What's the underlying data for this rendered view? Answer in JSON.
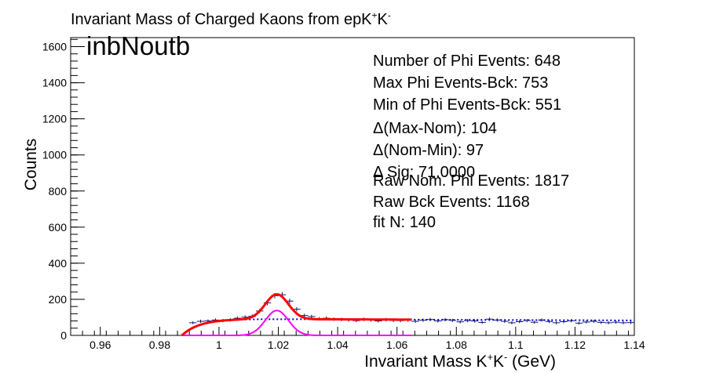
{
  "title": {
    "prefix": "Invariant Mass of Charged Kaons from epK",
    "sup1": "+",
    "mid": "K",
    "sup2": "-"
  },
  "run_label": "inbNoutb",
  "stats": [
    "Number of Phi Events: 648",
    "Max Phi Events-Bck: 753",
    "Min of Phi Events-Bck: 551",
    "Δ(Max-Nom): 104",
    "Δ(Nom-Min): 97",
    "Δ Sig: 71.0000",
    "Raw Nom. Phi Events: 1817",
    "Raw Bck Events: 1168",
    "fit N: 140"
  ],
  "chart_data": {
    "type": "scatter",
    "title": "Invariant Mass of Charged Kaons from epK+K-",
    "xlabel": "Invariant Mass K+K- (GeV)",
    "ylabel": "Counts",
    "xlim": [
      0.95,
      1.14
    ],
    "ylim": [
      0,
      1650
    ],
    "x_ticks": [
      0.96,
      0.98,
      1,
      1.02,
      1.04,
      1.06,
      1.08,
      1.1,
      1.12,
      1.14
    ],
    "x_tick_labels": [
      "0.96",
      "0.98",
      "1",
      "1.02",
      "1.04",
      "1.06",
      "1.08",
      "1.1",
      "1.12",
      "1.14"
    ],
    "y_ticks": [
      0,
      200,
      400,
      600,
      800,
      1000,
      1200,
      1400,
      1600
    ],
    "y_tick_labels": [
      "0",
      "200",
      "400",
      "600",
      "800",
      "1000",
      "1200",
      "1400",
      "1600"
    ],
    "grid": false,
    "series": [
      {
        "type": "points",
        "color": "#0b1670",
        "bin_width": 0.0025,
        "x": [
          0.9912,
          0.9938,
          0.9963,
          0.9988,
          1.0013,
          1.0038,
          1.0062,
          1.0088,
          1.0112,
          1.0137,
          1.0163,
          1.0188,
          1.0213,
          1.0238,
          1.0262,
          1.0288,
          1.0312,
          1.0338,
          1.0362,
          1.0387,
          1.0413,
          1.0437,
          1.0463,
          1.0488,
          1.0512,
          1.0537,
          1.0563,
          1.0588,
          1.0612,
          1.0637,
          1.0662,
          1.0688,
          1.0712,
          1.0738,
          1.0762,
          1.0787,
          1.0813,
          1.0838,
          1.0862,
          1.0887,
          1.0912,
          1.0938,
          1.0963,
          1.0987,
          1.1013,
          1.1038,
          1.1063,
          1.1088,
          1.1113,
          1.1137,
          1.1162,
          1.1187,
          1.1213,
          1.1238,
          1.1263,
          1.1288,
          1.1313,
          1.1338,
          1.1363,
          1.1388
        ],
        "y": [
          70,
          78,
          80,
          85,
          82,
          86,
          95,
          101,
          106,
          135,
          180,
          220,
          225,
          190,
          145,
          110,
          104,
          92,
          95,
          90,
          88,
          85,
          82,
          89,
          85,
          80,
          87,
          83,
          82,
          85,
          78,
          84,
          88,
          80,
          87,
          83,
          75,
          82,
          80,
          72,
          90,
          85,
          78,
          70,
          76,
          82,
          73,
          85,
          77,
          70,
          76,
          81,
          68,
          74,
          78,
          72,
          70,
          73,
          70,
          71
        ]
      },
      {
        "type": "fit",
        "color": "#ff0000",
        "name": "total fit",
        "x_range": [
          0.9875,
          1.065
        ]
      },
      {
        "type": "fit",
        "color": "#ff00ff",
        "name": "signal",
        "x_range": [
          0.9875,
          1.065
        ]
      },
      {
        "type": "fit",
        "color": "#0000cc",
        "style": "dotted",
        "name": "background",
        "x_range": [
          0.9875,
          1.14
        ]
      }
    ]
  },
  "xlabel_parts": {
    "prefix": "Invariant Mass K",
    "sup1": "+",
    "mid": "K",
    "sup2": "-",
    "suffix": " (GeV)"
  },
  "ylabel_text": "Counts"
}
